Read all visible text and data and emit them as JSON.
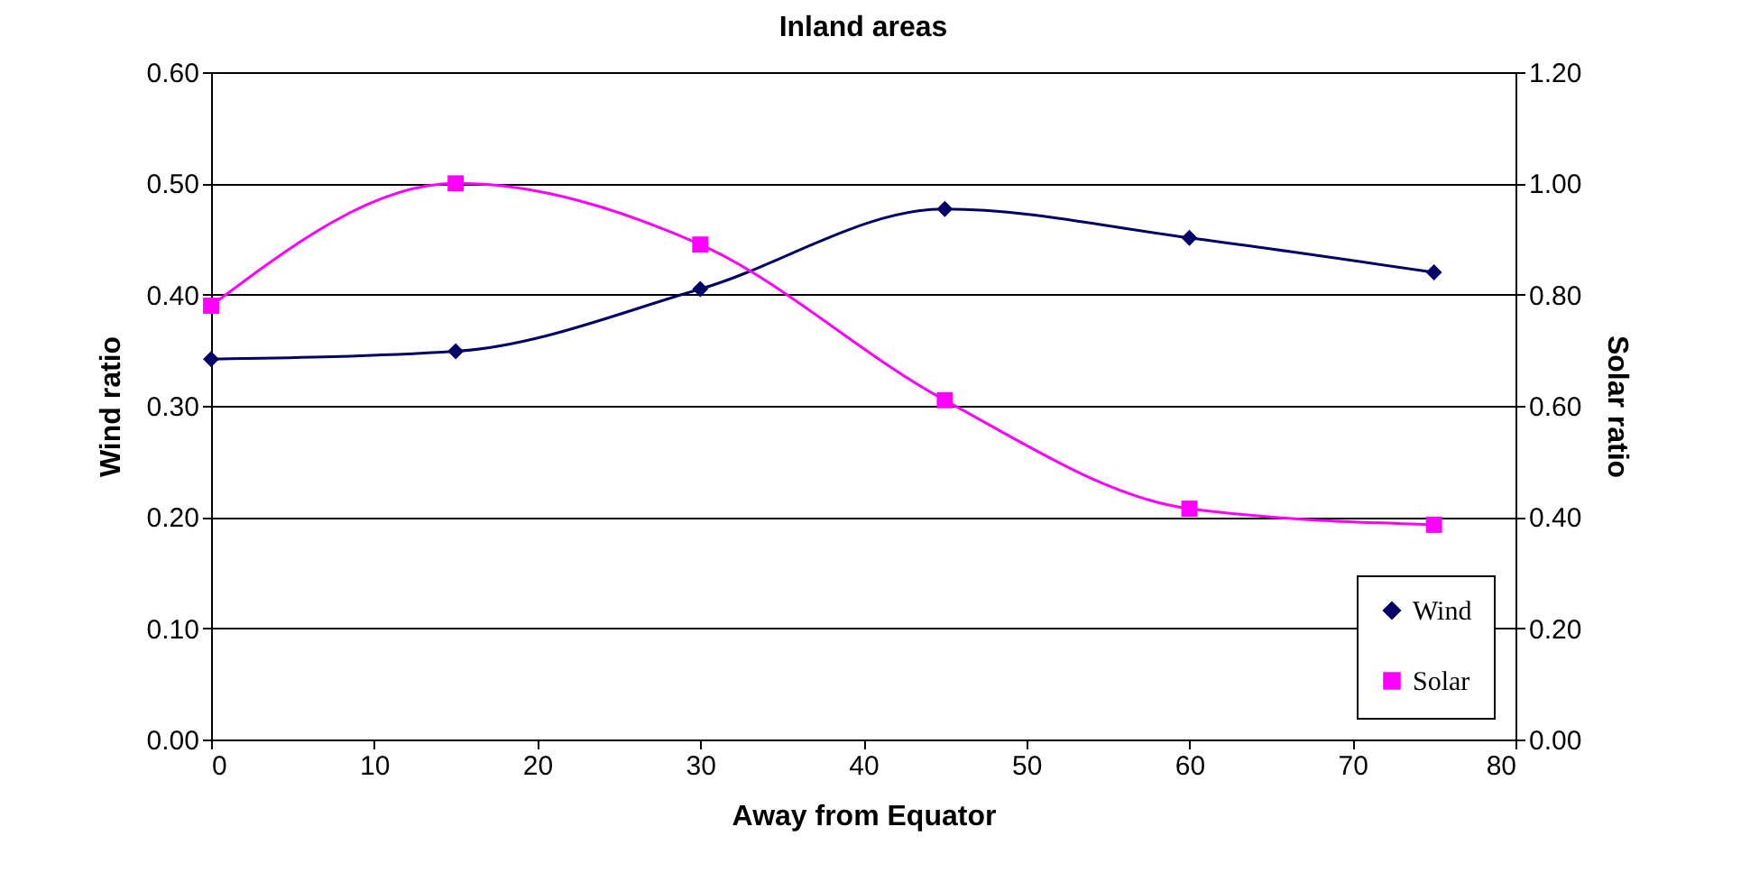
{
  "chart_data": {
    "type": "line",
    "title": "Inland areas",
    "xlabel": "Away from Equator",
    "ylabel": "Wind ratio",
    "y2label": "Solar ratio",
    "x": [
      0,
      15,
      30,
      45,
      60,
      75
    ],
    "series": [
      {
        "name": "Wind",
        "color": "#000066",
        "marker": "diamond",
        "values": [
          0.342,
          0.349,
          0.405,
          0.477,
          0.451,
          0.42
        ]
      },
      {
        "name": "Solar",
        "color": "#ff00ff",
        "marker": "square",
        "axis": "y2",
        "values": [
          0.78,
          1.0,
          0.89,
          0.61,
          0.415,
          0.386
        ]
      }
    ],
    "xlim": [
      0,
      80
    ],
    "xticks": [
      0,
      10,
      20,
      30,
      40,
      50,
      60,
      70,
      80
    ],
    "ylim": [
      0,
      0.6
    ],
    "yticks": [
      {
        "value": 0,
        "label": "0.00"
      },
      {
        "value": 0.1,
        "label": "0.10"
      },
      {
        "value": 0.2,
        "label": "0.20"
      },
      {
        "value": 0.3,
        "label": "0.30"
      },
      {
        "value": 0.4,
        "label": "0.40"
      },
      {
        "value": 0.5,
        "label": "0.50"
      },
      {
        "value": 0.6,
        "label": "0.60"
      }
    ],
    "y2lim": [
      0,
      1.2
    ],
    "y2ticks": [
      {
        "value": 0,
        "label": "0.00"
      },
      {
        "value": 0.2,
        "label": "0.20"
      },
      {
        "value": 0.4,
        "label": "0.40"
      },
      {
        "value": 0.6,
        "label": "0.60"
      },
      {
        "value": 0.8,
        "label": "0.80"
      },
      {
        "value": 1.0,
        "label": "1.00"
      },
      {
        "value": 1.2,
        "label": "1.20"
      }
    ],
    "grid": "y",
    "legend": "bottom right"
  }
}
